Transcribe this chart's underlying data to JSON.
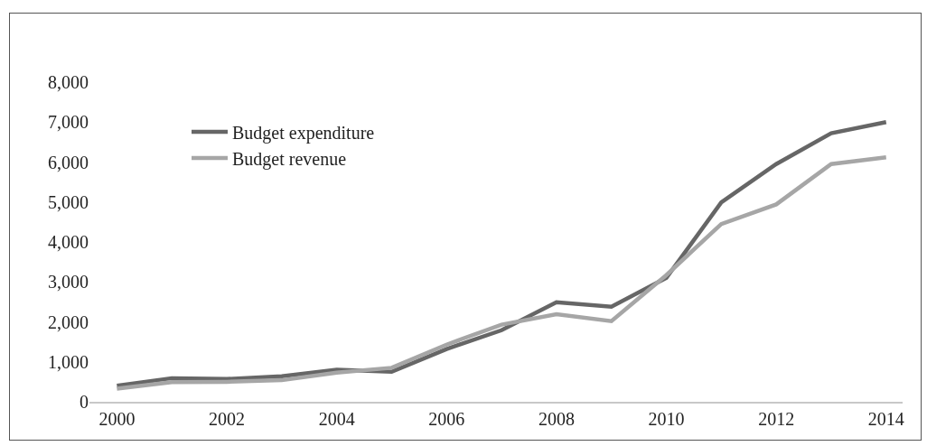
{
  "chart_data": {
    "type": "line",
    "x": [
      2000,
      2001,
      2002,
      2003,
      2004,
      2005,
      2006,
      2007,
      2008,
      2009,
      2010,
      2011,
      2012,
      2013,
      2014
    ],
    "series": [
      {
        "name": "Budget expenditure",
        "color": "#666666",
        "values": [
          400,
          590,
          570,
          640,
          800,
          750,
          1320,
          1790,
          2490,
          2380,
          3100,
          4990,
          5950,
          6720,
          7000
        ]
      },
      {
        "name": "Budget revenue",
        "color": "#a6a6a6",
        "values": [
          330,
          490,
          500,
          540,
          730,
          850,
          1430,
          1930,
          2190,
          2020,
          3170,
          4450,
          4940,
          5950,
          6120
        ]
      }
    ],
    "xlim": [
      1999.5,
      2014.3
    ],
    "xticks": [
      2000,
      2002,
      2004,
      2006,
      2008,
      2010,
      2012,
      2014
    ],
    "ylim": [
      0,
      8000
    ],
    "yticks": [
      0,
      {
        "value": 1000,
        "label": "1,000"
      },
      {
        "value": 2000,
        "label": "2,000"
      },
      {
        "value": 3000,
        "label": "3,000"
      },
      {
        "value": 4000,
        "label": "4,000"
      },
      {
        "value": 5000,
        "label": "5,000"
      },
      {
        "value": 6000,
        "label": "6,000"
      },
      {
        "value": 7000,
        "label": "7,000"
      },
      {
        "value": 8000,
        "label": "8,000"
      }
    ],
    "grid": false,
    "legend": "top left",
    "marker": "none",
    "line_style": "solid"
  }
}
